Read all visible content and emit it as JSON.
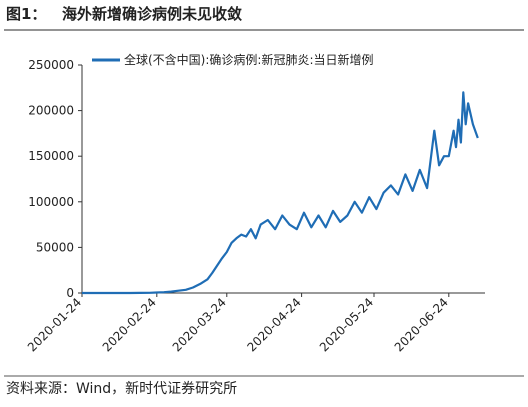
{
  "figure_label": "图1：",
  "chart_data": {
    "type": "line",
    "title": "海外新增确诊病例未见收敛",
    "x": [
      "2020-01-24",
      "2020-01-28",
      "2020-02-01",
      "2020-02-05",
      "2020-02-09",
      "2020-02-13",
      "2020-02-17",
      "2020-02-21",
      "2020-02-24",
      "2020-02-27",
      "2020-03-01",
      "2020-03-04",
      "2020-03-07",
      "2020-03-10",
      "2020-03-13",
      "2020-03-16",
      "2020-03-18",
      "2020-03-20",
      "2020-03-22",
      "2020-03-24",
      "2020-03-26",
      "2020-03-28",
      "2020-03-30",
      "2020-04-01",
      "2020-04-03",
      "2020-04-05",
      "2020-04-07",
      "2020-04-10",
      "2020-04-13",
      "2020-04-16",
      "2020-04-19",
      "2020-04-22",
      "2020-04-25",
      "2020-04-28",
      "2020-05-01",
      "2020-05-04",
      "2020-05-07",
      "2020-05-10",
      "2020-05-13",
      "2020-05-16",
      "2020-05-19",
      "2020-05-22",
      "2020-05-25",
      "2020-05-28",
      "2020-05-31",
      "2020-06-03",
      "2020-06-06",
      "2020-06-09",
      "2020-06-12",
      "2020-06-15",
      "2020-06-18",
      "2020-06-20",
      "2020-06-22",
      "2020-06-24",
      "2020-06-26",
      "2020-06-27",
      "2020-06-28",
      "2020-06-29",
      "2020-06-30",
      "2020-07-01",
      "2020-07-02",
      "2020-07-04",
      "2020-07-06"
    ],
    "series": [
      {
        "name": "全球(不含中国):确诊病例:新冠肺炎:当日新增例",
        "color": "#1f6db5",
        "values": [
          0,
          0,
          10,
          20,
          30,
          50,
          80,
          200,
          500,
          900,
          1500,
          2500,
          3500,
          6000,
          10000,
          15000,
          22000,
          30000,
          38000,
          45000,
          55000,
          60000,
          64000,
          62000,
          70000,
          60000,
          75000,
          80000,
          70000,
          85000,
          75000,
          70000,
          88000,
          72000,
          85000,
          72000,
          90000,
          78000,
          85000,
          100000,
          88000,
          105000,
          92000,
          110000,
          118000,
          108000,
          130000,
          112000,
          135000,
          115000,
          178000,
          140000,
          150000,
          150000,
          178000,
          160000,
          190000,
          165000,
          220000,
          185000,
          208000,
          185000,
          170000
        ]
      }
    ],
    "xlim": [
      "2020-01-24",
      "2020-07-09"
    ],
    "xticks": [
      "2020-01-24",
      "2020-02-24",
      "2020-03-24",
      "2020-04-24",
      "2020-05-24",
      "2020-06-24"
    ],
    "ylim": [
      0,
      250000
    ],
    "yticks": [
      0,
      50000,
      100000,
      150000,
      200000,
      250000
    ]
  },
  "source": "资料来源：Wind，新时代证券研究所"
}
